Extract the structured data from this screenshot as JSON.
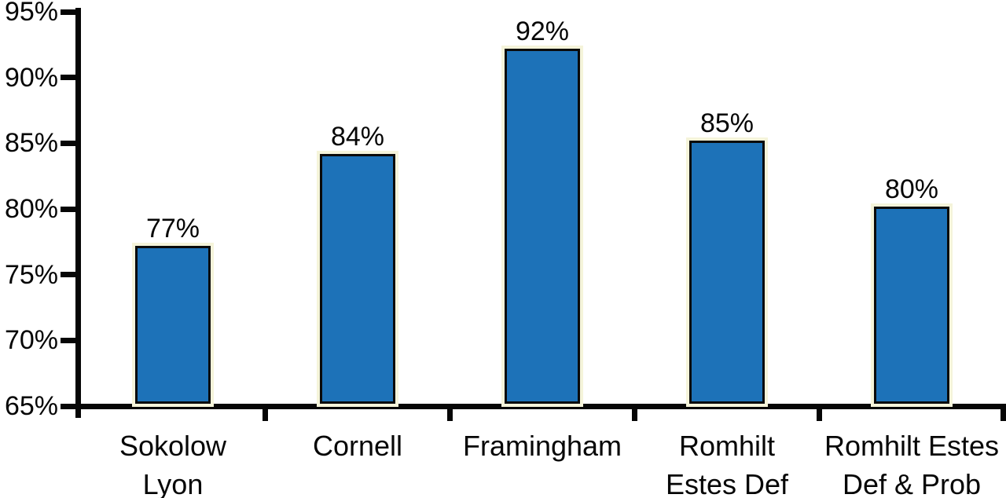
{
  "chart_data": {
    "type": "bar",
    "title": "",
    "xlabel": "",
    "ylabel": "",
    "categories": [
      "Sokolow Lyon",
      "Cornell",
      "Framingham",
      "Romhilt Estes Def",
      "Romhilt Estes Def & Prob"
    ],
    "category_lines": [
      [
        "Sokolow",
        "Lyon"
      ],
      [
        "Cornell"
      ],
      [
        "Framingham"
      ],
      [
        "Romhilt",
        "Estes Def"
      ],
      [
        "Romhilt Estes",
        "Def & Prob"
      ]
    ],
    "values": [
      77,
      84,
      92,
      85,
      80
    ],
    "value_labels": [
      "77%",
      "84%",
      "92%",
      "85%",
      "80%"
    ],
    "y_tick_values": [
      65,
      70,
      75,
      80,
      85,
      90,
      95
    ],
    "y_tick_labels": [
      "65%",
      "70%",
      "75%",
      "80%",
      "85%",
      "90%",
      "95%"
    ],
    "ylim": [
      65,
      95
    ],
    "grid": "off",
    "legend": "none",
    "bar_color": "#1d72b8",
    "bar_border_color": "#0a0a0a",
    "bar_glow_color": "#f5f4da",
    "axis_color": "#060606",
    "text_color": "#060606"
  }
}
